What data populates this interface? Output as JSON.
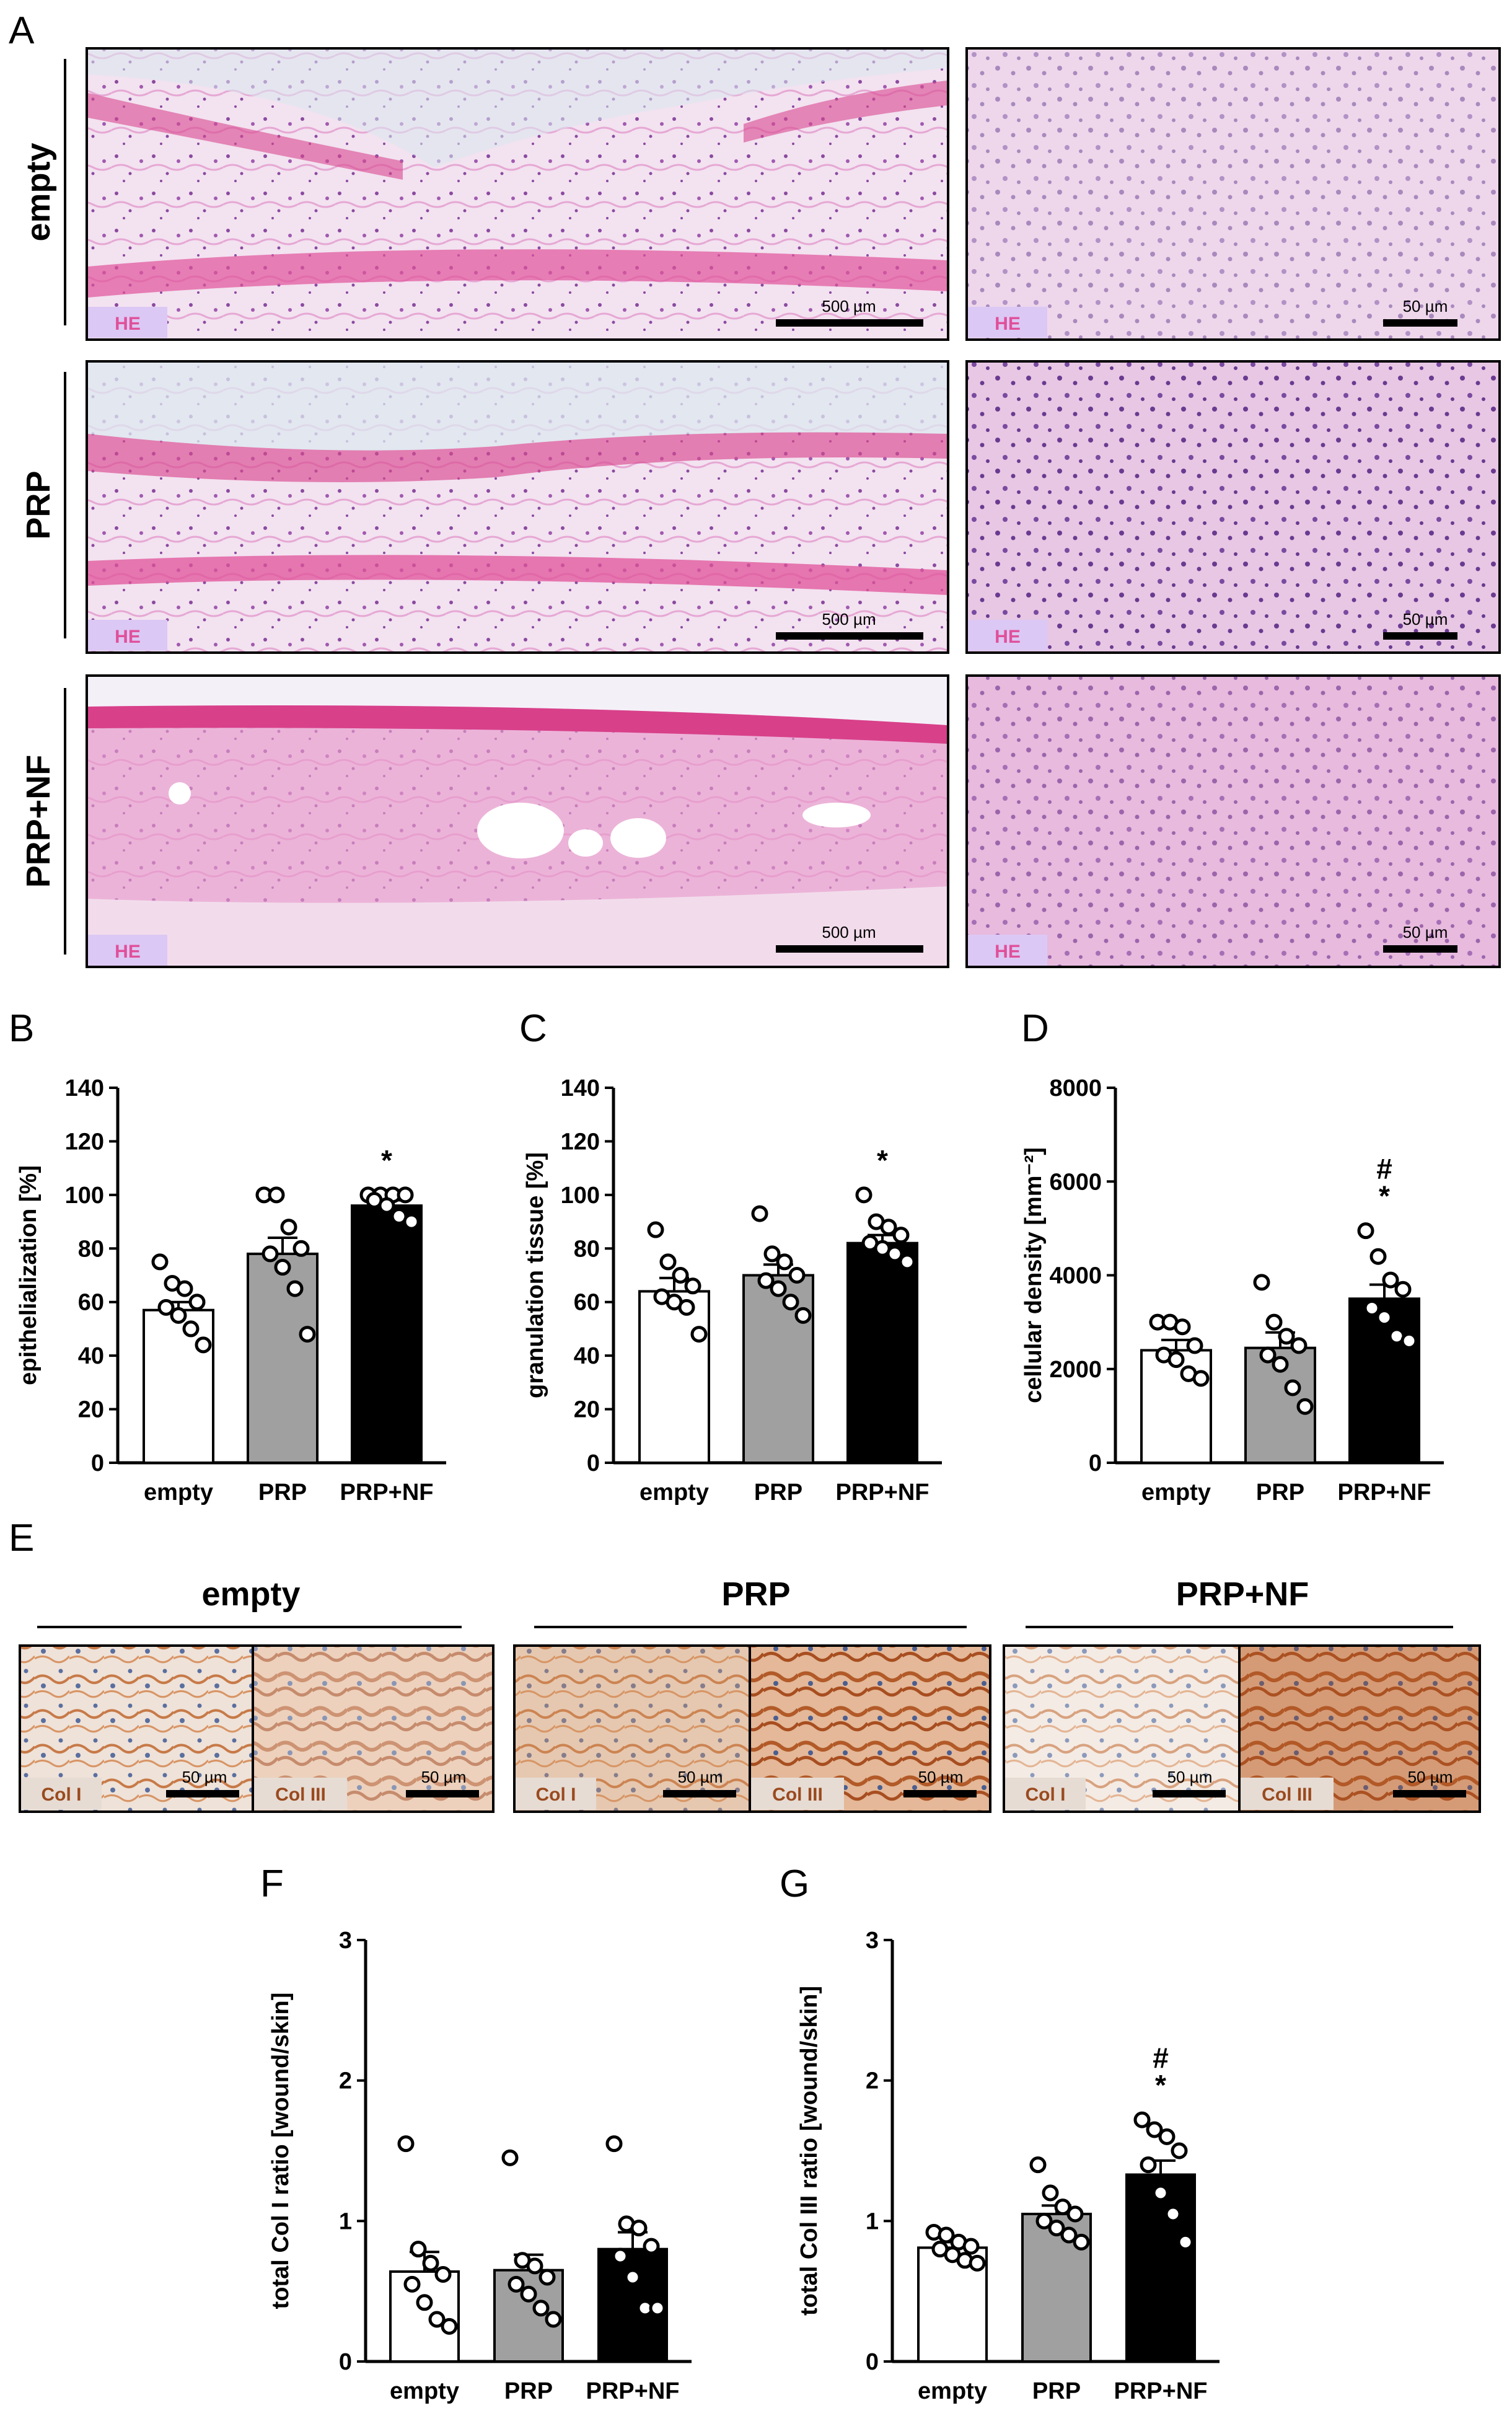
{
  "panels": {
    "A": {
      "letter": "A",
      "rows": [
        {
          "label": "empty",
          "stain": "HE",
          "scale_left": "500 µm",
          "scale_right": "50 µm"
        },
        {
          "label": "PRP",
          "stain": "HE",
          "scale_left": "500 µm",
          "scale_right": "50 µm"
        },
        {
          "label": "PRP+NF",
          "stain": "HE",
          "scale_left": "500 µm",
          "scale_right": "50 µm"
        }
      ]
    },
    "E": {
      "letter": "E",
      "groups": [
        {
          "label": "empty",
          "left_stain": "Col I",
          "right_stain": "Col III",
          "scale_left": "50 µm",
          "scale_right": "50 µm"
        },
        {
          "label": "PRP",
          "left_stain": "Col I",
          "right_stain": "Col III",
          "scale_left": "50 µm",
          "scale_right": "50 µm"
        },
        {
          "label": "PRP+NF",
          "left_stain": "Col I",
          "right_stain": "Col III",
          "scale_left": "50 µm",
          "scale_right": "50 µm"
        }
      ]
    }
  },
  "colors": {
    "empty": "#ffffff",
    "PRP": "#a0a0a0",
    "PRP+NF": "#000000",
    "he_light": "#ecc8e6",
    "he_dark": "#d8488f",
    "dab_light": "#ead8cc",
    "dab_dark": "#c0703e"
  },
  "chart_data": [
    {
      "letter": "B",
      "type": "bar",
      "categories": [
        "empty",
        "PRP",
        "PRP+NF"
      ],
      "values": [
        57,
        78,
        96
      ],
      "errors": [
        3,
        6,
        2
      ],
      "points": [
        [
          75,
          67,
          65,
          60,
          58,
          55,
          50,
          44
        ],
        [
          100,
          100,
          88,
          80,
          78,
          73,
          65,
          48
        ],
        [
          100,
          100,
          100,
          100,
          98,
          96,
          92,
          90
        ]
      ],
      "annotations": [
        "",
        "",
        "*"
      ],
      "ylabel": "epithelialization [%]",
      "ylim": [
        0,
        140
      ],
      "yticks": [
        "0",
        "20",
        "40",
        "60",
        "80",
        "100",
        "120",
        "140"
      ],
      "ytick_values": [
        0,
        20,
        40,
        60,
        80,
        100,
        120,
        140
      ]
    },
    {
      "letter": "C",
      "type": "bar",
      "categories": [
        "empty",
        "PRP",
        "PRP+NF"
      ],
      "values": [
        64,
        70,
        82
      ],
      "errors": [
        5,
        4,
        3
      ],
      "points": [
        [
          87,
          75,
          70,
          66,
          62,
          60,
          58,
          48
        ],
        [
          93,
          78,
          75,
          70,
          68,
          65,
          60,
          55
        ],
        [
          100,
          90,
          88,
          85,
          82,
          80,
          78,
          75
        ]
      ],
      "annotations": [
        "",
        "",
        "*"
      ],
      "ylabel": "granulation tissue [%]",
      "ylim": [
        0,
        140
      ],
      "yticks": [
        "0",
        "20",
        "40",
        "60",
        "80",
        "100",
        "120",
        "140"
      ],
      "ytick_values": [
        0,
        20,
        40,
        60,
        80,
        100,
        120,
        140
      ]
    },
    {
      "letter": "D",
      "type": "bar",
      "categories": [
        "empty",
        "PRP",
        "PRP+NF"
      ],
      "values": [
        2400,
        2450,
        3500
      ],
      "errors": [
        220,
        330,
        300
      ],
      "points": [
        [
          3000,
          3000,
          2900,
          2500,
          2300,
          2200,
          1900,
          1800
        ],
        [
          3850,
          3000,
          2700,
          2500,
          2300,
          2100,
          1600,
          1200
        ],
        [
          4950,
          4400,
          3900,
          3700,
          3300,
          3100,
          2700,
          2600
        ]
      ],
      "annotations": [
        "",
        "",
        "#\n*"
      ],
      "ylabel": "cellular density [mm⁻²]",
      "ylim": [
        0,
        8000
      ],
      "yticks": [
        "0",
        "2000",
        "4000",
        "6000",
        "8000"
      ],
      "ytick_values": [
        0,
        2000,
        4000,
        6000,
        8000
      ]
    },
    {
      "letter": "F",
      "type": "bar",
      "categories": [
        "empty",
        "PRP",
        "PRP+NF"
      ],
      "values": [
        0.64,
        0.65,
        0.8
      ],
      "errors": [
        0.14,
        0.11,
        0.12
      ],
      "points": [
        [
          1.55,
          0.8,
          0.7,
          0.62,
          0.55,
          0.42,
          0.3,
          0.25
        ],
        [
          1.45,
          0.72,
          0.68,
          0.6,
          0.55,
          0.48,
          0.38,
          0.3
        ],
        [
          1.55,
          0.98,
          0.95,
          0.82,
          0.75,
          0.6,
          0.38,
          0.38
        ]
      ],
      "annotations": [
        "",
        "",
        ""
      ],
      "ylabel": "total Col I ratio [wound/skin]",
      "ylim": [
        0,
        3
      ],
      "yticks": [
        "0",
        "1",
        "2",
        "3"
      ],
      "ytick_values": [
        0,
        1,
        2,
        3
      ]
    },
    {
      "letter": "G",
      "type": "bar",
      "categories": [
        "empty",
        "PRP",
        "PRP+NF"
      ],
      "values": [
        0.81,
        1.05,
        1.33
      ],
      "errors": [
        0.04,
        0.06,
        0.1
      ],
      "points": [
        [
          0.92,
          0.9,
          0.85,
          0.82,
          0.8,
          0.76,
          0.72,
          0.7
        ],
        [
          1.4,
          1.2,
          1.1,
          1.05,
          1.0,
          0.95,
          0.9,
          0.85
        ],
        [
          1.72,
          1.65,
          1.6,
          1.5,
          1.4,
          1.2,
          1.05,
          0.85
        ]
      ],
      "annotations": [
        "",
        "",
        "#\n*"
      ],
      "ylabel": "total Col III ratio [wound/skin]",
      "ylim": [
        0,
        3
      ],
      "yticks": [
        "0",
        "1",
        "2",
        "3"
      ],
      "ytick_values": [
        0,
        1,
        2,
        3
      ]
    }
  ]
}
